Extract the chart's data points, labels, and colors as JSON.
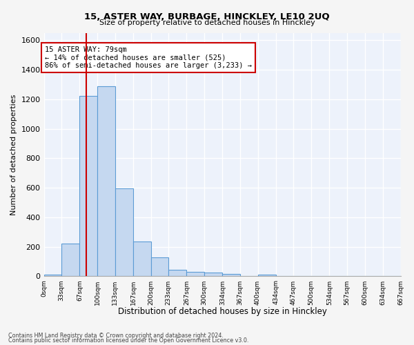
{
  "title": "15, ASTER WAY, BURBAGE, HINCKLEY, LE10 2UQ",
  "subtitle": "Size of property relative to detached houses in Hinckley",
  "xlabel": "Distribution of detached houses by size in Hinckley",
  "ylabel": "Number of detached properties",
  "bar_values": [
    10,
    220,
    1220,
    1290,
    595,
    235,
    130,
    45,
    30,
    25,
    17,
    0,
    12,
    0,
    0,
    0,
    0,
    0,
    0,
    0
  ],
  "bin_edges": [
    0,
    33,
    67,
    100,
    133,
    167,
    200,
    233,
    267,
    300,
    334,
    367,
    400,
    434,
    467,
    500,
    534,
    567,
    600,
    634,
    667
  ],
  "tick_labels": [
    "0sqm",
    "33sqm",
    "67sqm",
    "100sqm",
    "133sqm",
    "167sqm",
    "200sqm",
    "233sqm",
    "267sqm",
    "300sqm",
    "334sqm",
    "367sqm",
    "400sqm",
    "434sqm",
    "467sqm",
    "500sqm",
    "534sqm",
    "567sqm",
    "600sqm",
    "634sqm",
    "667sqm"
  ],
  "bar_color": "#c5d8f0",
  "bar_edge_color": "#5b9bd5",
  "vline_x": 79,
  "vline_color": "#cc0000",
  "ylim": [
    0,
    1650
  ],
  "yticks": [
    0,
    200,
    400,
    600,
    800,
    1000,
    1200,
    1400,
    1600
  ],
  "annotation_text": "15 ASTER WAY: 79sqm\n← 14% of detached houses are smaller (525)\n86% of semi-detached houses are larger (3,233) →",
  "annotation_box_color": "#cc0000",
  "footer_line1": "Contains HM Land Registry data © Crown copyright and database right 2024.",
  "footer_line2": "Contains public sector information licensed under the Open Government Licence v3.0.",
  "bg_color": "#edf2fb",
  "grid_color": "#ffffff",
  "fig_bg_color": "#f5f5f5"
}
